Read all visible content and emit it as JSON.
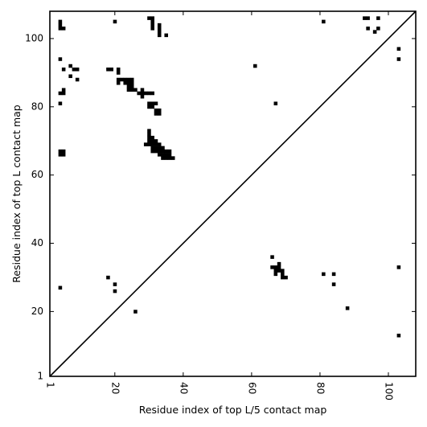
{
  "chart_data": {
    "type": "heatmap",
    "title": "",
    "xlabel": "Residue index of top L/5 contact map",
    "ylabel": "Residue index of top L contact map",
    "xlim": [
      1,
      108
    ],
    "ylim": [
      1,
      108
    ],
    "x_ticks": [
      1,
      20,
      40,
      60,
      80,
      100
    ],
    "y_ticks": [
      1,
      20,
      40,
      60,
      80,
      100
    ],
    "x_tick_rotation_deg": 270,
    "grid": false,
    "diagonal_line": true,
    "cell_color": "#000000",
    "upper_triangle_top_L": [
      [
        4,
        105
      ],
      [
        4,
        104
      ],
      [
        4,
        103
      ],
      [
        5,
        103
      ],
      [
        20,
        105
      ],
      [
        30,
        106
      ],
      [
        31,
        106
      ],
      [
        31,
        105
      ],
      [
        31,
        104
      ],
      [
        31,
        103
      ],
      [
        33,
        104
      ],
      [
        33,
        103
      ],
      [
        33,
        102
      ],
      [
        33,
        101
      ],
      [
        35,
        101
      ],
      [
        81,
        105
      ],
      [
        93,
        106
      ],
      [
        94,
        106
      ],
      [
        97,
        106
      ],
      [
        94,
        103
      ],
      [
        96,
        102
      ],
      [
        97,
        103
      ],
      [
        4,
        94
      ],
      [
        5,
        91
      ],
      [
        7,
        92
      ],
      [
        8,
        91
      ],
      [
        9,
        91
      ],
      [
        7,
        89
      ],
      [
        9,
        88
      ],
      [
        18,
        91
      ],
      [
        19,
        91
      ],
      [
        21,
        91
      ],
      [
        21,
        90
      ],
      [
        21,
        88
      ],
      [
        21,
        87
      ],
      [
        22,
        88
      ],
      [
        23,
        88
      ],
      [
        24,
        88
      ],
      [
        25,
        88
      ],
      [
        23,
        87
      ],
      [
        24,
        87
      ],
      [
        25,
        87
      ],
      [
        24,
        86
      ],
      [
        25,
        86
      ],
      [
        24,
        85
      ],
      [
        25,
        85
      ],
      [
        26,
        85
      ],
      [
        27,
        84
      ],
      [
        28,
        84
      ],
      [
        29,
        84
      ],
      [
        30,
        84
      ],
      [
        31,
        84
      ],
      [
        28,
        85
      ],
      [
        28,
        83
      ],
      [
        30,
        81
      ],
      [
        31,
        81
      ],
      [
        32,
        81
      ],
      [
        30,
        80
      ],
      [
        31,
        80
      ],
      [
        32,
        79
      ],
      [
        33,
        79
      ],
      [
        32,
        78
      ],
      [
        33,
        78
      ],
      [
        61,
        92
      ],
      [
        67,
        81
      ],
      [
        4,
        84
      ],
      [
        5,
        84
      ],
      [
        5,
        85
      ],
      [
        4,
        81
      ],
      [
        4,
        67
      ],
      [
        5,
        67
      ],
      [
        4,
        66
      ],
      [
        5,
        66
      ],
      [
        30,
        73
      ],
      [
        30,
        72
      ],
      [
        30,
        71
      ],
      [
        31,
        71
      ],
      [
        30,
        70
      ],
      [
        31,
        70
      ],
      [
        32,
        70
      ],
      [
        30,
        69
      ],
      [
        31,
        69
      ],
      [
        32,
        69
      ],
      [
        33,
        69
      ],
      [
        29,
        69
      ],
      [
        31,
        68
      ],
      [
        32,
        68
      ],
      [
        33,
        68
      ],
      [
        34,
        68
      ],
      [
        31,
        67
      ],
      [
        32,
        67
      ],
      [
        33,
        67
      ],
      [
        34,
        67
      ],
      [
        35,
        67
      ],
      [
        36,
        67
      ],
      [
        33,
        66
      ],
      [
        34,
        66
      ],
      [
        35,
        66
      ],
      [
        36,
        66
      ],
      [
        34,
        65
      ],
      [
        35,
        65
      ],
      [
        36,
        65
      ],
      [
        37,
        65
      ],
      [
        4,
        27
      ],
      [
        26,
        20
      ]
    ],
    "lower_triangle_top_L5": [
      [
        66,
        36
      ],
      [
        66,
        33
      ],
      [
        67,
        33
      ],
      [
        68,
        33
      ],
      [
        68,
        34
      ],
      [
        67,
        32
      ],
      [
        68,
        32
      ],
      [
        69,
        32
      ],
      [
        67,
        31
      ],
      [
        69,
        31
      ],
      [
        69,
        30
      ],
      [
        70,
        30
      ],
      [
        81,
        31
      ],
      [
        84,
        31
      ],
      [
        84,
        28
      ],
      [
        88,
        21
      ],
      [
        103,
        97
      ],
      [
        103,
        94
      ],
      [
        103,
        33
      ],
      [
        103,
        13
      ],
      [
        18,
        30
      ],
      [
        20,
        28
      ],
      [
        20,
        26
      ]
    ]
  }
}
